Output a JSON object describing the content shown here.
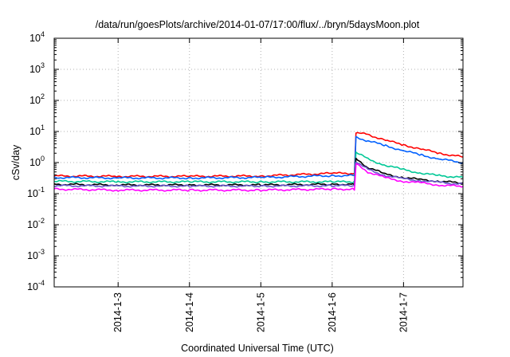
{
  "chart_data": {
    "type": "line",
    "title": "/data/run/goesPlots/archive/2014-01-07/17:00/flux/../bryn/5daysMoon.plot",
    "xlabel": "Coordinated Universal Time (UTC)",
    "ylabel": "cSv/day",
    "yscale": "log",
    "ylim": [
      0.0001,
      10000
    ],
    "xlim": [
      "2014-01-02T02:30",
      "2014-01-07T20:00"
    ],
    "grid": true,
    "legend": "none",
    "x_ticks": [
      {
        "label": "2014-1-3",
        "x": "2014-01-03T00:00"
      },
      {
        "label": "2014-1-4",
        "x": "2014-01-04T00:00"
      },
      {
        "label": "2014-1-5",
        "x": "2014-01-05T00:00"
      },
      {
        "label": "2014-1-6",
        "x": "2014-01-06T00:00"
      },
      {
        "label": "2014-1-7",
        "x": "2014-01-07T00:00"
      }
    ],
    "y_ticks": [
      {
        "base": "10",
        "exp": "-4",
        "value": 0.0001
      },
      {
        "base": "10",
        "exp": "-3",
        "value": 0.001
      },
      {
        "base": "10",
        "exp": "-2",
        "value": 0.01
      },
      {
        "base": "10",
        "exp": "-1",
        "value": 0.1
      },
      {
        "base": "10",
        "exp": "0",
        "value": 1
      },
      {
        "base": "10",
        "exp": "1",
        "value": 10
      },
      {
        "base": "10",
        "exp": "2",
        "value": 100
      },
      {
        "base": "10",
        "exp": "3",
        "value": 1000
      },
      {
        "base": "10",
        "exp": "4",
        "value": 10000
      }
    ],
    "series": [
      {
        "color": "#ff0000",
        "x": [
          "2014-01-02T02:30",
          "2014-01-03T00:00",
          "2014-01-04T00:00",
          "2014-01-05T00:00",
          "2014-01-06T00:00",
          "2014-01-06T07:30",
          "2014-01-06T08:00",
          "2014-01-06T12:00",
          "2014-01-06T18:00",
          "2014-01-07T00:00",
          "2014-01-07T06:00",
          "2014-01-07T12:00",
          "2014-01-07T20:00"
        ],
        "y": [
          0.37,
          0.36,
          0.36,
          0.37,
          0.45,
          0.45,
          9.0,
          8.0,
          5.2,
          3.7,
          2.7,
          2.0,
          1.5
        ]
      },
      {
        "color": "#0060ff",
        "x": [
          "2014-01-02T02:30",
          "2014-01-03T00:00",
          "2014-01-04T00:00",
          "2014-01-05T00:00",
          "2014-01-06T00:00",
          "2014-01-06T07:30",
          "2014-01-06T08:00",
          "2014-01-06T12:00",
          "2014-01-06T18:00",
          "2014-01-07T00:00",
          "2014-01-07T06:00",
          "2014-01-07T12:00",
          "2014-01-07T20:00"
        ],
        "y": [
          0.33,
          0.32,
          0.32,
          0.33,
          0.38,
          0.38,
          6.5,
          5.0,
          3.5,
          2.4,
          1.75,
          1.3,
          1.0
        ]
      },
      {
        "color": "#00c896",
        "x": [
          "2014-01-02T02:30",
          "2014-01-03T00:00",
          "2014-01-04T00:00",
          "2014-01-05T00:00",
          "2014-01-06T00:00",
          "2014-01-06T07:30",
          "2014-01-06T08:00",
          "2014-01-06T12:00",
          "2014-01-06T18:00",
          "2014-01-07T00:00",
          "2014-01-07T06:00",
          "2014-01-07T12:00",
          "2014-01-07T20:00"
        ],
        "y": [
          0.25,
          0.24,
          0.24,
          0.24,
          0.24,
          0.24,
          2.2,
          1.3,
          0.8,
          0.6,
          0.45,
          0.38,
          0.33
        ]
      },
      {
        "color": "#000000",
        "x": [
          "2014-01-02T02:30",
          "2014-01-03T00:00",
          "2014-01-04T00:00",
          "2014-01-05T00:00",
          "2014-01-06T00:00",
          "2014-01-06T07:30",
          "2014-01-06T08:00",
          "2014-01-06T12:00",
          "2014-01-06T18:00",
          "2014-01-07T00:00",
          "2014-01-07T06:00",
          "2014-01-07T12:00",
          "2014-01-07T20:00"
        ],
        "y": [
          0.2,
          0.19,
          0.19,
          0.19,
          0.2,
          0.2,
          1.3,
          0.7,
          0.42,
          0.33,
          0.28,
          0.25,
          0.22
        ]
      },
      {
        "color": "#6a5acd",
        "x": [
          "2014-01-02T02:30",
          "2014-01-03T00:00",
          "2014-01-04T00:00",
          "2014-01-05T00:00",
          "2014-01-06T00:00",
          "2014-01-06T07:30",
          "2014-01-06T08:00",
          "2014-01-06T12:00",
          "2014-01-06T18:00",
          "2014-01-07T00:00",
          "2014-01-07T06:00",
          "2014-01-07T12:00",
          "2014-01-07T20:00"
        ],
        "y": [
          0.18,
          0.175,
          0.175,
          0.175,
          0.18,
          0.18,
          1.1,
          0.6,
          0.38,
          0.3,
          0.26,
          0.23,
          0.2
        ]
      },
      {
        "color": "#ff00ff",
        "x": [
          "2014-01-02T02:30",
          "2014-01-03T00:00",
          "2014-01-04T00:00",
          "2014-01-05T00:00",
          "2014-01-06T00:00",
          "2014-01-06T07:30",
          "2014-01-06T08:00",
          "2014-01-06T12:00",
          "2014-01-06T18:00",
          "2014-01-07T00:00",
          "2014-01-07T06:00",
          "2014-01-07T12:00",
          "2014-01-07T20:00"
        ],
        "y": [
          0.14,
          0.13,
          0.13,
          0.13,
          0.14,
          0.14,
          0.9,
          0.5,
          0.32,
          0.25,
          0.22,
          0.19,
          0.17
        ]
      }
    ]
  }
}
